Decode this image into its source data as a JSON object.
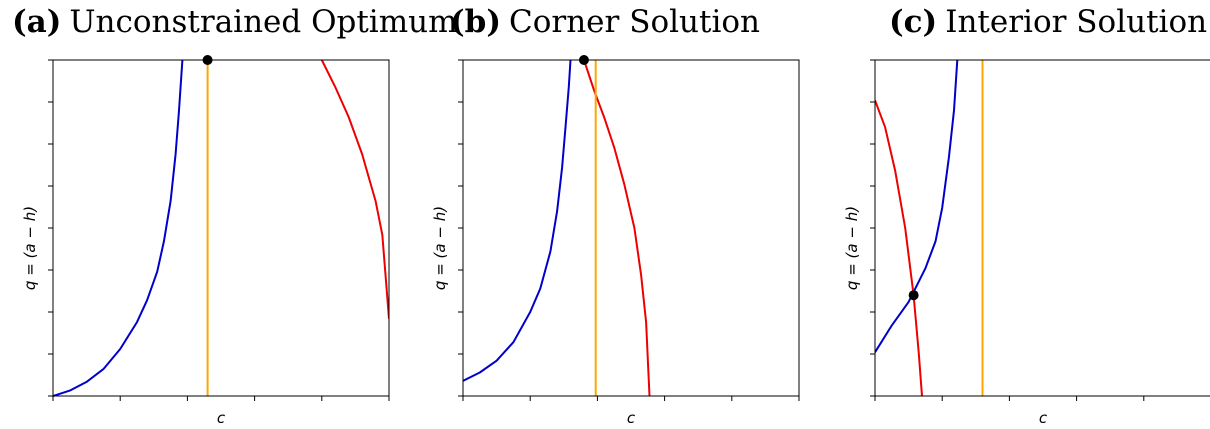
{
  "chart_data": [
    {
      "type": "line",
      "panel_tag": "(a)",
      "title": "Unconstrained Optimum",
      "xlabel": "c",
      "ylabel": "q = (a − h)",
      "xlim": [
        0,
        1
      ],
      "ylim": [
        0,
        1
      ],
      "x_ticks_count": 6,
      "y_ticks_count": 9,
      "tick_labels_shown": false,
      "grid": false,
      "series": [
        {
          "color": "#0000cc",
          "points": [
            [
              0.0,
              0.0
            ],
            [
              0.05,
              0.016
            ],
            [
              0.1,
              0.042
            ],
            [
              0.15,
              0.08
            ],
            [
              0.2,
              0.14
            ],
            [
              0.25,
              0.22
            ],
            [
              0.28,
              0.285
            ],
            [
              0.31,
              0.37
            ],
            [
              0.33,
              0.46
            ],
            [
              0.35,
              0.58
            ],
            [
              0.365,
              0.72
            ],
            [
              0.375,
              0.85
            ],
            [
              0.385,
              1.0
            ]
          ]
        },
        {
          "color": "#ee0000",
          "points": [
            [
              0.8,
              1.0
            ],
            [
              0.84,
              0.92
            ],
            [
              0.88,
              0.83
            ],
            [
              0.92,
              0.72
            ],
            [
              0.96,
              0.58
            ],
            [
              0.98,
              0.48
            ],
            [
              1.0,
              0.23
            ]
          ]
        },
        {
          "color": "#ffa500",
          "points": [
            [
              0.46,
              0.0
            ],
            [
              0.46,
              1.0
            ]
          ]
        }
      ],
      "marker": {
        "x": 0.46,
        "y": 1.0,
        "color": "#000000"
      }
    },
    {
      "type": "line",
      "panel_tag": "(b)",
      "title": "Corner Solution",
      "xlabel": "c",
      "ylabel": "q = (a − h)",
      "xlim": [
        0,
        1
      ],
      "ylim": [
        0,
        1
      ],
      "x_ticks_count": 6,
      "y_ticks_count": 9,
      "tick_labels_shown": false,
      "grid": false,
      "series": [
        {
          "color": "#0000cc",
          "points": [
            [
              0.0,
              0.045
            ],
            [
              0.05,
              0.07
            ],
            [
              0.1,
              0.105
            ],
            [
              0.15,
              0.16
            ],
            [
              0.2,
              0.25
            ],
            [
              0.23,
              0.32
            ],
            [
              0.26,
              0.43
            ],
            [
              0.28,
              0.55
            ],
            [
              0.295,
              0.68
            ],
            [
              0.305,
              0.8
            ],
            [
              0.315,
              0.92
            ],
            [
              0.32,
              1.0
            ]
          ]
        },
        {
          "color": "#ee0000",
          "points": [
            [
              0.36,
              1.0
            ],
            [
              0.39,
              0.91
            ],
            [
              0.42,
              0.83
            ],
            [
              0.45,
              0.74
            ],
            [
              0.48,
              0.63
            ],
            [
              0.51,
              0.5
            ],
            [
              0.53,
              0.36
            ],
            [
              0.545,
              0.22
            ],
            [
              0.555,
              0.0
            ]
          ]
        },
        {
          "color": "#ffa500",
          "points": [
            [
              0.395,
              0.0
            ],
            [
              0.395,
              1.0
            ]
          ]
        }
      ],
      "marker": {
        "x": 0.36,
        "y": 1.0,
        "color": "#000000"
      }
    },
    {
      "type": "line",
      "panel_tag": "(c)",
      "title": "Interior Solution",
      "xlabel": "c",
      "ylabel": "q = (a − h)",
      "xlim": [
        0,
        1
      ],
      "ylim": [
        0,
        1
      ],
      "x_ticks_count": 6,
      "y_ticks_count": 9,
      "tick_labels_shown": false,
      "grid": false,
      "series": [
        {
          "color": "#0000cc",
          "points": [
            [
              0.0,
              0.13
            ],
            [
              0.05,
              0.21
            ],
            [
              0.1,
              0.28
            ],
            [
              0.15,
              0.38
            ],
            [
              0.18,
              0.46
            ],
            [
              0.2,
              0.56
            ],
            [
              0.22,
              0.71
            ],
            [
              0.235,
              0.85
            ],
            [
              0.245,
              1.0
            ]
          ]
        },
        {
          "color": "#ee0000",
          "points": [
            [
              0.0,
              0.88
            ],
            [
              0.03,
              0.8
            ],
            [
              0.06,
              0.67
            ],
            [
              0.09,
              0.5
            ],
            [
              0.115,
              0.3
            ],
            [
              0.13,
              0.13
            ],
            [
              0.14,
              0.0
            ]
          ]
        },
        {
          "color": "#ffa500",
          "points": [
            [
              0.32,
              0.0
            ],
            [
              0.32,
              1.0
            ]
          ]
        }
      ],
      "marker": {
        "x": 0.115,
        "y": 0.3,
        "color": "#000000"
      }
    }
  ]
}
